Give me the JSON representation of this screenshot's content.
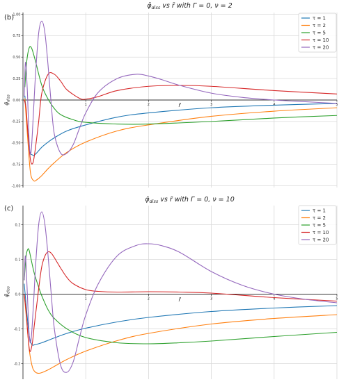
{
  "chart_data": [
    {
      "type": "line",
      "panel_label": "(b)",
      "title": "φ̄diss  vs  r̄  with  Γ = 0, ν = 2",
      "title_parts": {
        "phi": "φ̄",
        "sub": "diss",
        "rest": "  vs  r̄  with  Γ = 0, ν = 2"
      },
      "xlabel": "r̄",
      "ylabel_main": "φ̄",
      "ylabel_sub": "diss",
      "xlim": [
        0,
        5
      ],
      "ylim": [
        -1.02,
        1.02
      ],
      "xticks": [
        1,
        2,
        3,
        4,
        5
      ],
      "xtick_labels": [
        "1",
        "2",
        "3",
        "4",
        "5"
      ],
      "yticks": [
        -1.0,
        -0.75,
        -0.5,
        -0.25,
        0.0,
        0.25,
        0.5,
        0.75,
        1.0
      ],
      "ytick_labels": [
        "-1.00",
        "-0.75",
        "-0.50",
        "-0.25",
        "0.00",
        "0.25",
        "0.50",
        "0.75",
        "1.00"
      ],
      "grid": true,
      "legend_position": "top-right",
      "series": [
        {
          "name": "τ = 1",
          "color": "#1f77b4",
          "x": [
            0.03,
            0.1,
            0.15,
            0.2,
            0.3,
            0.4,
            0.5,
            0.7,
            1.0,
            1.5,
            2.0,
            3.0,
            4.0,
            5.0
          ],
          "y": [
            0.05,
            -0.55,
            -0.64,
            -0.63,
            -0.55,
            -0.49,
            -0.44,
            -0.36,
            -0.29,
            -0.2,
            -0.15,
            -0.09,
            -0.06,
            -0.04
          ]
        },
        {
          "name": "τ = 2",
          "color": "#ff7f0e",
          "x": [
            0.03,
            0.08,
            0.12,
            0.17,
            0.22,
            0.3,
            0.4,
            0.5,
            0.7,
            1.0,
            1.5,
            2.0,
            3.0,
            4.0,
            5.0
          ],
          "y": [
            0.02,
            -0.5,
            -0.85,
            -0.94,
            -0.93,
            -0.88,
            -0.8,
            -0.73,
            -0.61,
            -0.49,
            -0.36,
            -0.29,
            -0.19,
            -0.13,
            -0.09
          ]
        },
        {
          "name": "τ = 5",
          "color": "#2ca02c",
          "x": [
            0.03,
            0.06,
            0.1,
            0.14,
            0.2,
            0.3,
            0.4,
            0.5,
            0.6,
            0.8,
            1.0,
            1.5,
            2.0,
            3.0,
            4.0,
            5.0
          ],
          "y": [
            0.15,
            0.45,
            0.61,
            0.6,
            0.45,
            0.17,
            0.01,
            -0.1,
            -0.17,
            -0.23,
            -0.26,
            -0.28,
            -0.28,
            -0.25,
            -0.21,
            -0.18
          ]
        },
        {
          "name": "τ = 10",
          "color": "#d62728",
          "x": [
            0.02,
            0.05,
            0.08,
            0.12,
            0.16,
            0.2,
            0.25,
            0.3,
            0.4,
            0.5,
            0.6,
            0.7,
            0.9,
            1.0,
            1.2,
            1.5,
            2.0,
            2.5,
            3.0,
            4.0,
            5.0
          ],
          "y": [
            0.0,
            -0.1,
            -0.4,
            -0.7,
            -0.73,
            -0.55,
            -0.25,
            0.08,
            0.3,
            0.3,
            0.22,
            0.12,
            0.02,
            0.01,
            0.04,
            0.11,
            0.16,
            0.17,
            0.16,
            0.11,
            0.07
          ]
        },
        {
          "name": "τ = 20",
          "color": "#9467bd",
          "x": [
            0.02,
            0.04,
            0.07,
            0.1,
            0.13,
            0.17,
            0.2,
            0.25,
            0.3,
            0.35,
            0.4,
            0.45,
            0.5,
            0.6,
            0.7,
            0.8,
            0.9,
            1.0,
            1.2,
            1.5,
            1.8,
            2.0,
            2.2,
            2.5,
            3.0,
            3.5,
            4.0,
            4.5,
            5.0
          ],
          "y": [
            0.04,
            0.44,
            0.1,
            -0.5,
            -0.6,
            -0.1,
            0.3,
            0.78,
            0.92,
            0.78,
            0.4,
            -0.05,
            -0.4,
            -0.62,
            -0.62,
            -0.52,
            -0.33,
            -0.15,
            0.09,
            0.25,
            0.3,
            0.28,
            0.24,
            0.17,
            0.08,
            0.03,
            0.0,
            -0.02,
            -0.04
          ]
        }
      ]
    },
    {
      "type": "line",
      "panel_label": "(c)",
      "title": "φ̄diss  vs  r̄  with  Γ = 0, ν = 10",
      "title_parts": {
        "phi": "φ̄",
        "sub": "diss",
        "rest": "  vs  r̄  with  Γ = 0, ν = 10"
      },
      "xlabel": "r̄",
      "ylabel_main": "φ̄",
      "ylabel_sub": "diss",
      "xlim": [
        0,
        5
      ],
      "ylim": [
        -0.245,
        0.255
      ],
      "xticks": [
        1,
        2,
        3,
        4,
        5
      ],
      "xtick_labels": [
        "1",
        "2",
        "3",
        "4",
        "5"
      ],
      "yticks": [
        -0.2,
        -0.1,
        0.0,
        0.1,
        0.2
      ],
      "ytick_labels": [
        "-0.2",
        "-0.1",
        "0.0",
        "0.1",
        "0.2"
      ],
      "grid": true,
      "legend_position": "top-right",
      "series": [
        {
          "name": "τ = 1",
          "color": "#1f77b4",
          "x": [
            0.02,
            0.06,
            0.1,
            0.14,
            0.2,
            0.3,
            0.4,
            0.5,
            0.7,
            1.0,
            1.5,
            2.0,
            3.0,
            4.0,
            5.0
          ],
          "y": [
            0.03,
            -0.05,
            -0.12,
            -0.145,
            -0.145,
            -0.14,
            -0.133,
            -0.126,
            -0.113,
            -0.098,
            -0.08,
            -0.067,
            -0.05,
            -0.04,
            -0.033
          ]
        },
        {
          "name": "τ = 2",
          "color": "#ff7f0e",
          "x": [
            0.02,
            0.06,
            0.1,
            0.15,
            0.2,
            0.25,
            0.3,
            0.4,
            0.5,
            0.7,
            1.0,
            1.5,
            2.0,
            3.0,
            4.0,
            5.0
          ],
          "y": [
            0.0,
            -0.08,
            -0.16,
            -0.21,
            -0.225,
            -0.228,
            -0.226,
            -0.218,
            -0.208,
            -0.188,
            -0.164,
            -0.134,
            -0.113,
            -0.086,
            -0.07,
            -0.059
          ]
        },
        {
          "name": "τ = 5",
          "color": "#2ca02c",
          "x": [
            0.02,
            0.05,
            0.08,
            0.1,
            0.13,
            0.18,
            0.25,
            0.3,
            0.4,
            0.5,
            0.7,
            1.0,
            1.5,
            2.0,
            2.5,
            3.0,
            4.0,
            5.0
          ],
          "y": [
            0.04,
            0.11,
            0.13,
            0.125,
            0.1,
            0.06,
            0.02,
            -0.005,
            -0.045,
            -0.07,
            -0.1,
            -0.125,
            -0.14,
            -0.143,
            -0.14,
            -0.135,
            -0.122,
            -0.11
          ]
        },
        {
          "name": "τ = 10",
          "color": "#d62728",
          "x": [
            0.02,
            0.05,
            0.08,
            0.11,
            0.15,
            0.18,
            0.22,
            0.26,
            0.3,
            0.35,
            0.4,
            0.45,
            0.5,
            0.6,
            0.7,
            0.8,
            1.0,
            1.2,
            1.5,
            2.0,
            2.5,
            3.0,
            4.0,
            5.0
          ],
          "y": [
            0.0,
            -0.05,
            -0.12,
            -0.165,
            -0.14,
            -0.09,
            -0.03,
            0.03,
            0.08,
            0.11,
            0.122,
            0.118,
            0.105,
            0.075,
            0.048,
            0.03,
            0.013,
            0.008,
            0.006,
            0.007,
            0.006,
            0.003,
            -0.01,
            -0.02
          ]
        },
        {
          "name": "τ = 20",
          "color": "#9467bd",
          "x": [
            0.02,
            0.04,
            0.07,
            0.1,
            0.13,
            0.17,
            0.2,
            0.25,
            0.3,
            0.35,
            0.4,
            0.45,
            0.5,
            0.6,
            0.7,
            0.8,
            0.9,
            1.0,
            1.2,
            1.5,
            1.8,
            2.0,
            2.2,
            2.5,
            3.0,
            3.5,
            4.0,
            4.5,
            5.0
          ],
          "y": [
            0.04,
            0.11,
            0.0,
            -0.12,
            -0.13,
            -0.02,
            0.08,
            0.2,
            0.237,
            0.2,
            0.11,
            0.0,
            -0.1,
            -0.205,
            -0.225,
            -0.195,
            -0.125,
            -0.06,
            0.03,
            0.11,
            0.14,
            0.145,
            0.14,
            0.12,
            0.065,
            0.025,
            0.0,
            -0.015,
            -0.025
          ]
        }
      ]
    }
  ]
}
